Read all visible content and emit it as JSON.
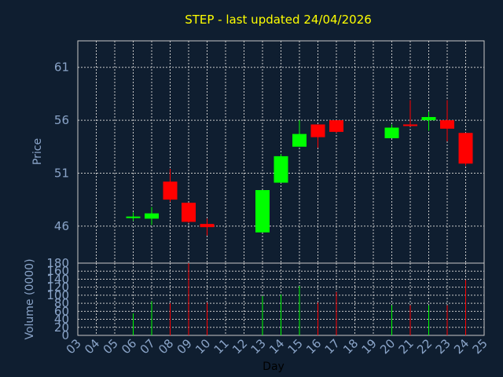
{
  "chart_data": [
    {
      "type": "candlestick",
      "title": "STEP - last updated 24/04/2026",
      "ylabel": "Price",
      "ylim": [
        42.5,
        63.5
      ],
      "yticks": [
        46,
        51,
        56,
        61
      ],
      "grid": true,
      "colors": {
        "up": "#00ff00",
        "down": "#ff0000",
        "background": "#0f1e30",
        "grid": "#c8c8c8",
        "title": "#ffff00",
        "axis_text": "#8aa4c8"
      },
      "candles": [
        {
          "day": "06",
          "open": 46.9,
          "high": 47.3,
          "low": 46.5,
          "close": 46.9
        },
        {
          "day": "07",
          "open": 46.7,
          "high": 47.8,
          "low": 46.1,
          "close": 47.2
        },
        {
          "day": "08",
          "open": 50.2,
          "high": 51.4,
          "low": 48.3,
          "close": 48.5
        },
        {
          "day": "09",
          "open": 48.2,
          "high": 48.2,
          "low": 46.3,
          "close": 46.4
        },
        {
          "day": "10",
          "open": 46.2,
          "high": 46.7,
          "low": 45.1,
          "close": 45.9
        },
        {
          "day": "13",
          "open": 45.4,
          "high": 49.4,
          "low": 45.4,
          "close": 49.4
        },
        {
          "day": "14",
          "open": 50.1,
          "high": 52.8,
          "low": 50.1,
          "close": 52.6
        },
        {
          "day": "15",
          "open": 53.5,
          "high": 56.0,
          "low": 53.5,
          "close": 54.7
        },
        {
          "day": "16",
          "open": 55.6,
          "high": 55.6,
          "low": 53.4,
          "close": 54.4
        },
        {
          "day": "17",
          "open": 56.0,
          "high": 56.0,
          "low": 54.8,
          "close": 54.9
        },
        {
          "day": "20",
          "open": 54.3,
          "high": 55.6,
          "low": 54.3,
          "close": 55.3
        },
        {
          "day": "21",
          "open": 55.6,
          "high": 57.9,
          "low": 55.4,
          "close": 55.5
        },
        {
          "day": "22",
          "open": 56.0,
          "high": 56.8,
          "low": 55.0,
          "close": 56.3
        },
        {
          "day": "23",
          "open": 56.0,
          "high": 57.9,
          "low": 54.0,
          "close": 55.2
        },
        {
          "day": "24",
          "open": 54.8,
          "high": 54.8,
          "low": 51.7,
          "close": 51.9
        }
      ]
    },
    {
      "type": "bar",
      "ylabel": "Volume (0000)",
      "xlabel": "Day",
      "ylim": [
        0,
        180
      ],
      "yticks": [
        0,
        20,
        40,
        60,
        80,
        100,
        120,
        140,
        160,
        180
      ],
      "x_categories": [
        "03",
        "04",
        "05",
        "06",
        "07",
        "08",
        "09",
        "10",
        "11",
        "12",
        "13",
        "14",
        "15",
        "16",
        "17",
        "18",
        "19",
        "20",
        "21",
        "22",
        "23",
        "24",
        "25"
      ],
      "bars": [
        {
          "day": "06",
          "value": 55,
          "direction": "up"
        },
        {
          "day": "07",
          "value": 85,
          "direction": "up"
        },
        {
          "day": "08",
          "value": 80,
          "direction": "down"
        },
        {
          "day": "09",
          "value": 180,
          "direction": "down"
        },
        {
          "day": "10",
          "value": 82,
          "direction": "down"
        },
        {
          "day": "13",
          "value": 98,
          "direction": "up"
        },
        {
          "day": "14",
          "value": 102,
          "direction": "up"
        },
        {
          "day": "15",
          "value": 123,
          "direction": "up"
        },
        {
          "day": "16",
          "value": 82,
          "direction": "down"
        },
        {
          "day": "17",
          "value": 108,
          "direction": "down"
        },
        {
          "day": "20",
          "value": 75,
          "direction": "up"
        },
        {
          "day": "21",
          "value": 75,
          "direction": "down"
        },
        {
          "day": "22",
          "value": 75,
          "direction": "up"
        },
        {
          "day": "23",
          "value": 75,
          "direction": "down"
        },
        {
          "day": "24",
          "value": 138,
          "direction": "down"
        }
      ]
    }
  ]
}
